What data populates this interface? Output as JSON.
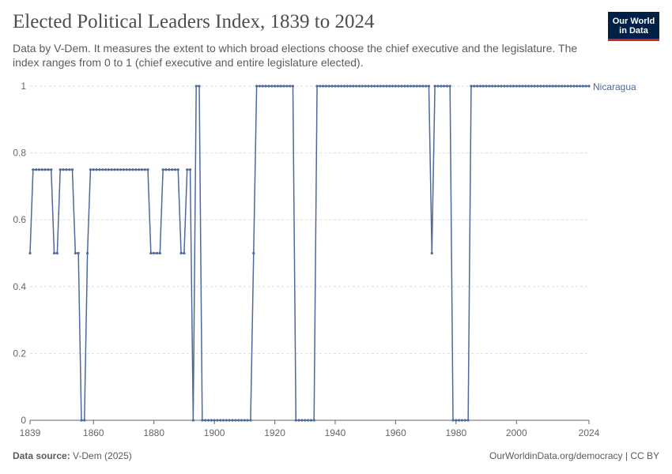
{
  "header": {
    "title": "Elected Political Leaders Index, 1839 to 2024",
    "subtitle": "Data by V-Dem. It measures the extent to which broad elections choose the chief executive and the legislature. The index ranges from 0 to 1 (chief executive and entire legislature elected).",
    "logo_line1": "Our World",
    "logo_line2": "in Data"
  },
  "footer": {
    "source_label": "Data source:",
    "source_value": "V-Dem (2025)",
    "link": "OurWorldinData.org/democracy | CC BY"
  },
  "colors": {
    "series": "#4c6a9c",
    "grid": "#dddddd",
    "axis": "#666666",
    "tick_text": "#666666"
  },
  "chart_data": {
    "type": "line",
    "title": "Elected Political Leaders Index, 1839 to 2024",
    "xlabel": "",
    "ylabel": "",
    "xlim": [
      1839,
      2024
    ],
    "ylim": [
      0,
      1
    ],
    "x_ticks": [
      1839,
      1860,
      1880,
      1900,
      1920,
      1940,
      1960,
      1980,
      2000,
      2024
    ],
    "y_ticks": [
      0,
      0.2,
      0.4,
      0.6,
      0.8,
      1
    ],
    "y_tick_labels": [
      "0",
      "0.2",
      "0.4",
      "0.6",
      "0.8",
      "1"
    ],
    "grid": true,
    "series": [
      {
        "name": "Nicaragua",
        "segments": [
          [
            1839,
            1839,
            0.5
          ],
          [
            1840,
            1846,
            0.75
          ],
          [
            1847,
            1848,
            0.5
          ],
          [
            1849,
            1853,
            0.75
          ],
          [
            1854,
            1855,
            0.5
          ],
          [
            1856,
            1857,
            0
          ],
          [
            1858,
            1858,
            0.5
          ],
          [
            1859,
            1878,
            0.75
          ],
          [
            1879,
            1882,
            0.5
          ],
          [
            1883,
            1888,
            0.75
          ],
          [
            1889,
            1890,
            0.5
          ],
          [
            1891,
            1892,
            0.75
          ],
          [
            1893,
            1893,
            0
          ],
          [
            1894,
            1895,
            1
          ],
          [
            1896,
            1912,
            0
          ],
          [
            1913,
            1913,
            0.5
          ],
          [
            1914,
            1926,
            1
          ],
          [
            1927,
            1933,
            0
          ],
          [
            1934,
            1971,
            1
          ],
          [
            1972,
            1972,
            0.5
          ],
          [
            1973,
            1978,
            1
          ],
          [
            1979,
            1984,
            0
          ],
          [
            1985,
            2024,
            1
          ]
        ]
      }
    ]
  }
}
